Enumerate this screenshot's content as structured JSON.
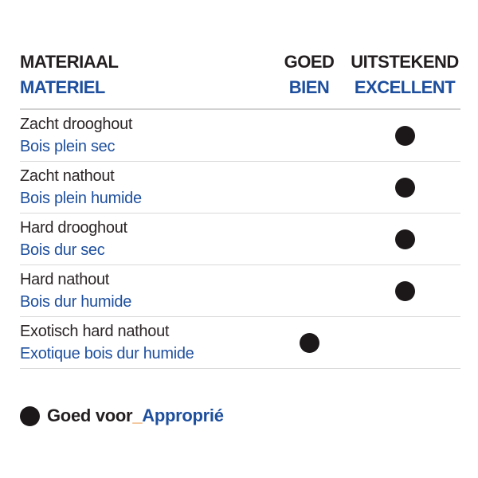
{
  "colors": {
    "text_black": "#231f20",
    "text_blue": "#1d4f9e",
    "underscore_orange": "#e8882f",
    "divider_gray": "#d9d9d9",
    "dot_black": "#1c1819",
    "background": "#ffffff"
  },
  "table": {
    "headers": {
      "material": {
        "nl": "MATERIAAL",
        "fr": "MATERIEL"
      },
      "good": {
        "nl": "GOED",
        "fr": "BIEN"
      },
      "excellent": {
        "nl": "UITSTEKEND",
        "fr": "EXCELLENT"
      }
    },
    "rows": [
      {
        "nl": "Zacht drooghout",
        "fr": "Bois plein sec",
        "rating": "excellent"
      },
      {
        "nl": "Zacht nathout",
        "fr": "Bois plein humide",
        "rating": "excellent"
      },
      {
        "nl": "Hard drooghout",
        "fr": "Bois dur sec",
        "rating": "excellent"
      },
      {
        "nl": "Hard nathout",
        "fr": "Bois dur humide",
        "rating": "excellent"
      },
      {
        "nl": "Exotisch hard nathout",
        "fr": "Exotique bois dur humide",
        "rating": "good"
      }
    ]
  },
  "legend": {
    "icon": "filled-circle-icon",
    "nl": "Goed voor",
    "separator": "_",
    "fr": "Approprié"
  }
}
